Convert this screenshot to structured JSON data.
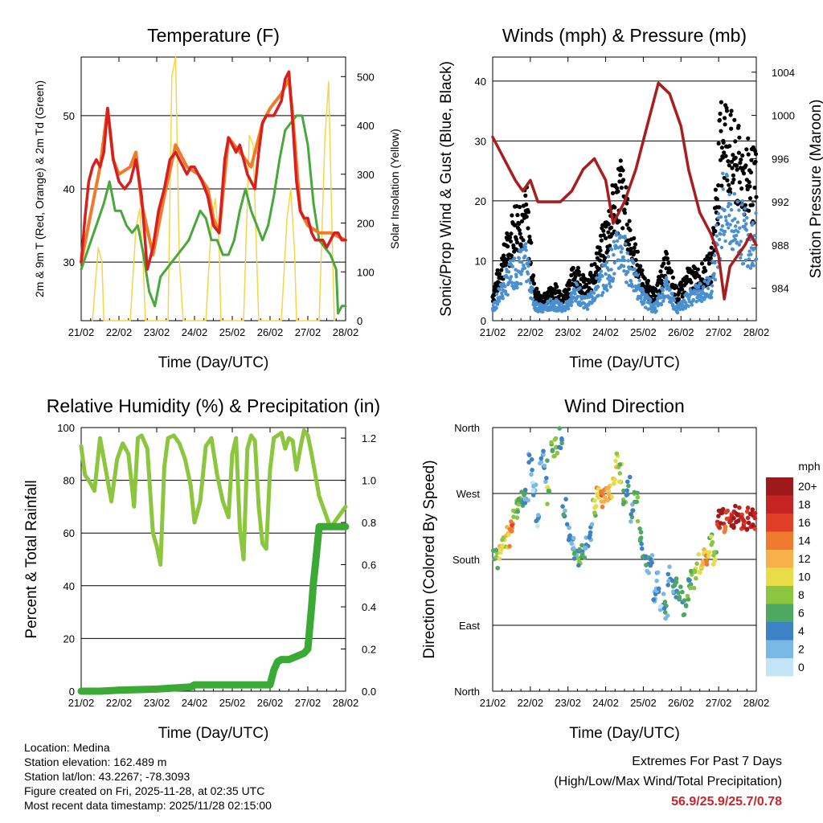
{
  "chart_data": [
    {
      "type": "line",
      "title": "Temperature (F)",
      "xlabel": "Time (Day/UTC)",
      "ylabel": "2m & 9m T (Red, Orange) & 2m Td (Green)",
      "ylabel_right": "Solar Insolation (Yellow)",
      "categories": [
        "21/02",
        "22/02",
        "23/02",
        "24/02",
        "25/02",
        "26/02",
        "27/02",
        "28/02"
      ],
      "ylim": [
        22,
        58
      ],
      "yticks": [
        30,
        40,
        50
      ],
      "ylim_right": [
        0,
        540
      ],
      "yticks_right": [
        0,
        100,
        200,
        300,
        400,
        500
      ],
      "series": [
        {
          "name": "2m T",
          "color": "#d62020",
          "x": [
            0,
            0.1,
            0.2,
            0.3,
            0.4,
            0.5,
            0.6,
            0.7,
            0.85,
            1.0,
            1.15,
            1.3,
            1.45,
            1.6,
            1.75,
            1.9,
            2.05,
            2.2,
            2.35,
            2.5,
            2.6,
            2.7,
            2.8,
            2.9,
            3.0,
            3.1,
            3.2,
            3.35,
            3.5,
            3.65,
            3.8,
            3.9,
            4.0,
            4.1,
            4.2,
            4.3,
            4.4,
            4.5,
            4.6,
            4.7,
            4.8,
            4.9,
            5.0,
            5.1,
            5.2,
            5.3,
            5.4,
            5.5,
            5.6,
            5.7,
            5.8,
            5.9,
            6.0,
            6.1,
            6.2,
            6.3,
            6.4,
            6.5,
            6.6,
            6.7,
            6.8,
            6.9,
            7.0
          ],
          "y": [
            30,
            36,
            41,
            43,
            44,
            43,
            45,
            51,
            44,
            41,
            40,
            41,
            44,
            39,
            29,
            32,
            37,
            40,
            44,
            45,
            44,
            43,
            42,
            43,
            43,
            42,
            41,
            39,
            35,
            34,
            44,
            47,
            46,
            45,
            46,
            44,
            42,
            41,
            40,
            45,
            49,
            50,
            50,
            50,
            51,
            52,
            55,
            56,
            49,
            41,
            37,
            36,
            36,
            34,
            33,
            33,
            33,
            32,
            33,
            34,
            34,
            33,
            33
          ]
        },
        {
          "name": "9m T",
          "color": "#f07a28",
          "x": [
            0,
            0.5,
            0.7,
            0.85,
            1.0,
            1.3,
            1.45,
            1.6,
            1.9,
            2.2,
            2.5,
            2.8,
            3.1,
            3.35,
            3.5,
            3.65,
            3.9,
            4.2,
            4.5,
            4.8,
            5.0,
            5.3,
            5.5,
            5.6,
            5.8,
            6.0,
            6.3,
            6.6,
            7.0
          ],
          "y": [
            30,
            43,
            51,
            44,
            42,
            43,
            45,
            38,
            31,
            39,
            46,
            43,
            42,
            40,
            36,
            34,
            47,
            45,
            43,
            49,
            51,
            53,
            55,
            50,
            37,
            35,
            34,
            34,
            33
          ]
        },
        {
          "name": "2m Td",
          "color": "#48a83c",
          "x": [
            0,
            0.2,
            0.4,
            0.6,
            0.75,
            0.9,
            1.05,
            1.2,
            1.35,
            1.5,
            1.65,
            1.8,
            1.95,
            2.1,
            2.25,
            2.4,
            2.55,
            2.7,
            2.85,
            3.0,
            3.15,
            3.3,
            3.45,
            3.6,
            3.75,
            3.9,
            4.05,
            4.2,
            4.35,
            4.5,
            4.65,
            4.8,
            4.95,
            5.1,
            5.25,
            5.4,
            5.55,
            5.7,
            5.85,
            6.0,
            6.15,
            6.3,
            6.45,
            6.6,
            6.75,
            6.8,
            6.9,
            7.0
          ],
          "y": [
            29,
            32,
            35,
            38,
            41,
            37,
            37,
            35,
            34,
            35,
            31,
            26,
            24,
            28,
            29,
            30,
            31,
            32,
            33,
            35,
            37,
            36,
            33,
            33,
            31,
            31,
            33,
            37,
            40,
            37,
            35,
            33,
            35,
            39,
            44,
            48,
            49,
            50,
            50,
            46,
            38,
            33,
            32,
            31,
            29,
            23,
            24,
            24
          ]
        },
        {
          "name": "Solar Insolation",
          "color": "#f7d44a",
          "x": [
            0.3,
            0.45,
            0.55,
            0.6,
            1.3,
            1.45,
            1.55,
            1.65,
            1.7,
            2.3,
            2.4,
            2.5,
            2.6,
            2.7,
            3.3,
            3.45,
            3.55,
            3.65,
            3.7,
            4.3,
            4.45,
            4.55,
            4.65,
            4.7,
            5.3,
            5.45,
            5.55,
            5.65,
            5.7,
            6.3,
            6.45,
            6.55,
            6.65,
            6.7
          ],
          "y": [
            0,
            150,
            120,
            0,
            0,
            190,
            230,
            100,
            0,
            0,
            500,
            540,
            120,
            0,
            0,
            200,
            250,
            160,
            0,
            0,
            380,
            360,
            120,
            0,
            0,
            210,
            270,
            140,
            0,
            0,
            370,
            490,
            150,
            0
          ]
        }
      ]
    },
    {
      "type": "line",
      "title": "Winds (mph) & Pressure (mb)",
      "xlabel": "Time (Day/UTC)",
      "ylabel": "Sonic/Prop Wind & Gust (Blue, Black)",
      "ylabel_right": "Station Pressure (Maroon)",
      "categories": [
        "21/02",
        "22/02",
        "23/02",
        "24/02",
        "25/02",
        "26/02",
        "27/02",
        "28/02"
      ],
      "ylim": [
        0,
        44
      ],
      "yticks": [
        0,
        10,
        20,
        30,
        40
      ],
      "ylim_right": [
        981,
        1005.4
      ],
      "yticks_right": [
        984,
        988,
        992,
        996,
        1000,
        1004
      ],
      "series": [
        {
          "name": "Wind Gust",
          "color": "#000000",
          "kind": "dots",
          "x": [
            0,
            0.3,
            0.6,
            0.9,
            1.1,
            1.3,
            1.6,
            1.9,
            2.2,
            2.5,
            2.8,
            3.1,
            3.4,
            3.7,
            4.0,
            4.3,
            4.6,
            4.9,
            5.2,
            5.5,
            5.8,
            6.1,
            6.4,
            6.7,
            7.0
          ],
          "y": [
            4,
            10,
            16,
            18,
            5,
            3,
            5,
            4,
            8,
            5,
            10,
            16,
            22,
            12,
            6,
            4,
            9,
            4,
            7,
            7,
            9,
            32,
            26,
            24,
            22
          ]
        },
        {
          "name": "Wind Speed",
          "color": "#4a8fd0",
          "kind": "dots",
          "x": [
            0,
            0.3,
            0.6,
            0.9,
            1.1,
            1.3,
            1.6,
            1.9,
            2.2,
            2.5,
            2.8,
            3.1,
            3.4,
            3.7,
            4.0,
            4.3,
            4.6,
            4.9,
            5.2,
            5.5,
            5.8,
            6.1,
            6.4,
            6.7,
            7.0
          ],
          "y": [
            2,
            6,
            9,
            10,
            3,
            2,
            3,
            2,
            5,
            3,
            6,
            9,
            13,
            8,
            4,
            2,
            6,
            2,
            4,
            5,
            6,
            20,
            17,
            15,
            14
          ]
        },
        {
          "name": "Station Pressure",
          "color": "#a81e1e",
          "x": [
            0,
            0.3,
            0.6,
            0.8,
            1.0,
            1.2,
            1.5,
            1.8,
            2.1,
            2.4,
            2.7,
            3.0,
            3.2,
            3.5,
            3.8,
            4.1,
            4.4,
            4.7,
            5.0,
            5.2,
            5.5,
            5.8,
            6.0,
            6.15,
            6.3,
            6.5,
            6.7,
            6.85,
            7.0
          ],
          "y": [
            998,
            996,
            994,
            993,
            994,
            992,
            992,
            992,
            993,
            995,
            996,
            994,
            990,
            992,
            995,
            999,
            1003,
            1002,
            999,
            995,
            991,
            989,
            987,
            983,
            986,
            987,
            988,
            989,
            988
          ]
        }
      ]
    },
    {
      "type": "line",
      "title": "Relative Humidity (%) & Precipitation (in)",
      "xlabel": "Time (Day/UTC)",
      "ylabel": "Percent & Total Rainfall",
      "categories": [
        "21/02",
        "22/02",
        "23/02",
        "24/02",
        "25/02",
        "26/02",
        "27/02",
        "28/02"
      ],
      "ylim": [
        0,
        100
      ],
      "yticks": [
        0,
        20,
        40,
        60,
        80,
        100
      ],
      "ylim_right": [
        0,
        1.25
      ],
      "yticks_right": [
        0.0,
        0.2,
        0.4,
        0.6,
        0.8,
        1.0,
        1.2
      ],
      "series": [
        {
          "name": "Relative Humidity",
          "color": "#8cc63f",
          "x": [
            0,
            0.1,
            0.2,
            0.35,
            0.5,
            0.65,
            0.8,
            0.95,
            1.1,
            1.25,
            1.4,
            1.5,
            1.6,
            1.75,
            1.9,
            2.0,
            2.1,
            2.2,
            2.3,
            2.45,
            2.6,
            2.75,
            2.9,
            3.0,
            3.15,
            3.3,
            3.45,
            3.6,
            3.75,
            3.9,
            4.0,
            4.1,
            4.2,
            4.3,
            4.4,
            4.5,
            4.6,
            4.7,
            4.8,
            4.9,
            5.0,
            5.1,
            5.2,
            5.3,
            5.4,
            5.5,
            5.6,
            5.7,
            5.8,
            5.9,
            6.0,
            6.1,
            6.2,
            6.3,
            6.4,
            6.5,
            6.6,
            6.7,
            6.8,
            6.9,
            7.0
          ],
          "y": [
            93,
            82,
            80,
            76,
            96,
            84,
            72,
            88,
            94,
            90,
            70,
            96,
            97,
            92,
            60,
            55,
            48,
            85,
            96,
            97,
            94,
            88,
            78,
            64,
            72,
            93,
            96,
            82,
            72,
            66,
            90,
            96,
            62,
            50,
            92,
            97,
            95,
            70,
            56,
            54,
            84,
            96,
            97,
            98,
            92,
            96,
            95,
            84,
            92,
            99,
            97,
            90,
            82,
            74,
            70,
            66,
            62,
            64,
            66,
            68,
            70
          ]
        },
        {
          "name": "Total Precipitation",
          "color": "#3aaa35",
          "axis": "right",
          "x": [
            0,
            0.5,
            1.0,
            2.0,
            2.9,
            3.0,
            3.5,
            4.0,
            4.5,
            5.0,
            5.1,
            5.2,
            5.3,
            5.5,
            5.9,
            6.0,
            6.1,
            6.15,
            6.2,
            6.3,
            6.5,
            6.6,
            7.0
          ],
          "y": [
            0.0,
            0.0,
            0.005,
            0.01,
            0.02,
            0.03,
            0.03,
            0.03,
            0.03,
            0.03,
            0.1,
            0.14,
            0.15,
            0.15,
            0.18,
            0.2,
            0.4,
            0.52,
            0.6,
            0.78,
            0.78,
            0.78,
            0.78
          ]
        }
      ]
    },
    {
      "type": "scatter",
      "title": "Wind Direction",
      "xlabel": "Time (Day/UTC)",
      "ylabel": "Direction (Colored By Speed)",
      "categories": [
        "21/02",
        "22/02",
        "23/02",
        "24/02",
        "25/02",
        "26/02",
        "27/02",
        "28/02"
      ],
      "yticks": [
        "North",
        "East",
        "South",
        "West",
        "North"
      ],
      "ylim": [
        0,
        360
      ],
      "legend_title": "mph",
      "legend_labels": [
        "20+",
        "18",
        "16",
        "14",
        "12",
        "10",
        "8",
        "6",
        "4",
        "2",
        "0"
      ],
      "legend_colors": [
        "#9e1a1a",
        "#c62424",
        "#e03e26",
        "#f07a2e",
        "#f7b04a",
        "#e8dc48",
        "#8cc63f",
        "#4ea862",
        "#3d82c4",
        "#7ab8e6",
        "#c4e4f7"
      ],
      "points": {
        "x": [
          0,
          0.1,
          0.2,
          0.3,
          0.4,
          0.5,
          0.6,
          0.7,
          0.8,
          0.9,
          1.0,
          1.1,
          1.2,
          1.3,
          1.4,
          1.5,
          1.6,
          1.7,
          1.8,
          1.9,
          2.0,
          2.1,
          2.2,
          2.3,
          2.4,
          2.5,
          2.6,
          2.7,
          2.8,
          2.9,
          3.0,
          3.1,
          3.2,
          3.3,
          3.4,
          3.5,
          3.6,
          3.7,
          3.8,
          3.9,
          4.0,
          4.1,
          4.2,
          4.3,
          4.4,
          4.5,
          4.6,
          4.7,
          4.8,
          4.9,
          5.0,
          5.1,
          5.2,
          5.3,
          5.4,
          5.5,
          5.6,
          5.7,
          5.8,
          5.9,
          6.0,
          6.1,
          6.2,
          6.3,
          6.4,
          6.5,
          6.6,
          6.7,
          6.8,
          6.9,
          7.0
        ],
        "y": [
          180,
          182,
          190,
          200,
          210,
          225,
          250,
          258,
          262,
          270,
          310,
          280,
          240,
          320,
          300,
          270,
          330,
          340,
          345,
          250,
          220,
          200,
          182,
          185,
          185,
          195,
          215,
          250,
          268,
          262,
          265,
          270,
          280,
          310,
          300,
          270,
          280,
          240,
          260,
          220,
          190,
          175,
          178,
          130,
          150,
          120,
          110,
          160,
          145,
          140,
          130,
          110,
          140,
          150,
          160,
          175,
          180,
          185,
          200,
          178,
          235,
          238,
          232,
          240,
          238,
          230,
          236,
          234,
          236,
          238,
          236
        ],
        "speed": [
          6,
          8,
          10,
          9,
          12,
          14,
          7,
          6,
          5,
          4,
          3,
          2,
          2,
          3,
          4,
          8,
          7,
          6,
          5,
          4,
          3,
          2,
          4,
          6,
          5,
          3,
          4,
          8,
          12,
          14,
          13,
          12,
          11,
          10,
          8,
          6,
          5,
          4,
          7,
          6,
          5,
          4,
          3,
          2,
          3,
          2,
          4,
          3,
          4,
          5,
          6,
          5,
          6,
          7,
          9,
          10,
          11,
          12,
          8,
          8,
          18,
          20,
          16,
          18,
          20,
          19,
          17,
          16,
          18,
          19,
          18
        ]
      }
    }
  ],
  "info": {
    "location": "Location: Medina",
    "elevation": "Station elevation: 162.489 m",
    "latlon": "Station lat/lon: 43.2267; -78.3093",
    "created": "Figure created on Fri, 2025-11-28, at 02:35 UTC",
    "recent": "Most recent data timestamp: 2025/11/28 02:15:00"
  },
  "extremes": {
    "line1": "Extremes For Past 7 Days",
    "line2": "(High/Low/Max Wind/Total Precipitation)",
    "values": "56.9/25.9/25.7/0.78",
    "value_color": "#c8262c"
  }
}
